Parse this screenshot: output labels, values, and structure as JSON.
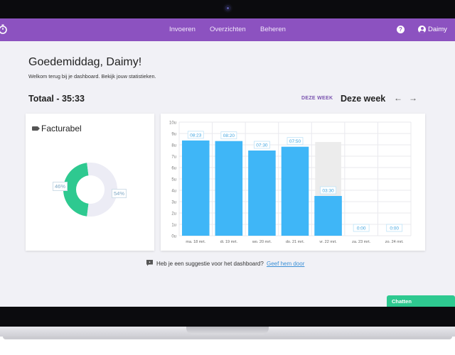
{
  "nav": {
    "items": [
      "Invoeren",
      "Overzichten",
      "Beheren"
    ],
    "help": "?",
    "user_name": "Daimy",
    "accent": "#8c52c0"
  },
  "header": {
    "greeting": "Goedemiddag, Daimy!",
    "welcome": "Welkom terug bij je dashboard. Bekijk jouw statistieken."
  },
  "total_label": "Totaal - 35:33",
  "week": {
    "link_label": "DEZE WEEK",
    "title": "Deze week",
    "prev": "←",
    "next": "→"
  },
  "facturabel": {
    "title": "Facturabel",
    "icon": "tag-icon",
    "segments": [
      {
        "label": "46%",
        "value": 46,
        "color": "#2ec990"
      },
      {
        "label": "54%",
        "value": 54,
        "color": "#ececf5"
      }
    ]
  },
  "chart_data": {
    "type": "bar",
    "categories": [
      "ma. 18 mrt.",
      "di. 19 mrt.",
      "wo. 20 mrt.",
      "do. 21 mrt.",
      "vr. 22 mrt.",
      "za. 23 mrt.",
      "zo. 24 mrt."
    ],
    "values": [
      8.3833,
      8.3333,
      7.5,
      7.8333,
      3.5,
      0,
      0
    ],
    "labels": [
      "08:23",
      "08:20",
      "07:30",
      "07:50",
      "03:30",
      "0:00",
      "0:00"
    ],
    "ytick_labels": [
      "0u",
      "1u",
      "2u",
      "3u",
      "4u",
      "5u",
      "6u",
      "7u",
      "8u",
      "9u",
      "10u"
    ],
    "ylim": [
      0,
      10
    ],
    "highlight_index": 4,
    "bar_color": "#3fb6f7",
    "highlight_color": "#ececec",
    "grid": true
  },
  "feedback": {
    "text": "Heb je een suggestie voor het dashboard?",
    "link": "Geef hem door"
  },
  "chat": {
    "label": "Chatten",
    "color": "#2ec990"
  }
}
